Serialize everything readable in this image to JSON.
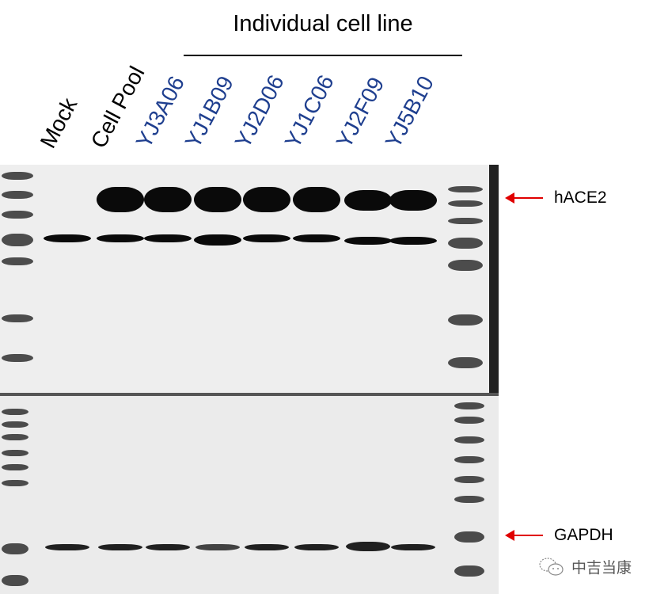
{
  "figure": {
    "group_label": "Individual cell line",
    "lanes": [
      {
        "label": "Mock",
        "color": "#000000"
      },
      {
        "label": "Cell Pool",
        "color": "#000000"
      },
      {
        "label": "YJ3A06",
        "color": "#1f3f8f"
      },
      {
        "label": "YJ1B09",
        "color": "#1f3f8f"
      },
      {
        "label": "YJ2D06",
        "color": "#1f3f8f"
      },
      {
        "label": "YJ1C06",
        "color": "#1f3f8f"
      },
      {
        "label": "YJ2F09",
        "color": "#1f3f8f"
      },
      {
        "label": "YJ5B10",
        "color": "#1f3f8f"
      }
    ],
    "markers": [
      {
        "label": "hACE2",
        "arrow_color": "#e00000"
      },
      {
        "label": "GAPDH",
        "arrow_color": "#e00000"
      }
    ]
  },
  "watermark": {
    "icon": "wechat-icon",
    "text": "中吉当康"
  }
}
